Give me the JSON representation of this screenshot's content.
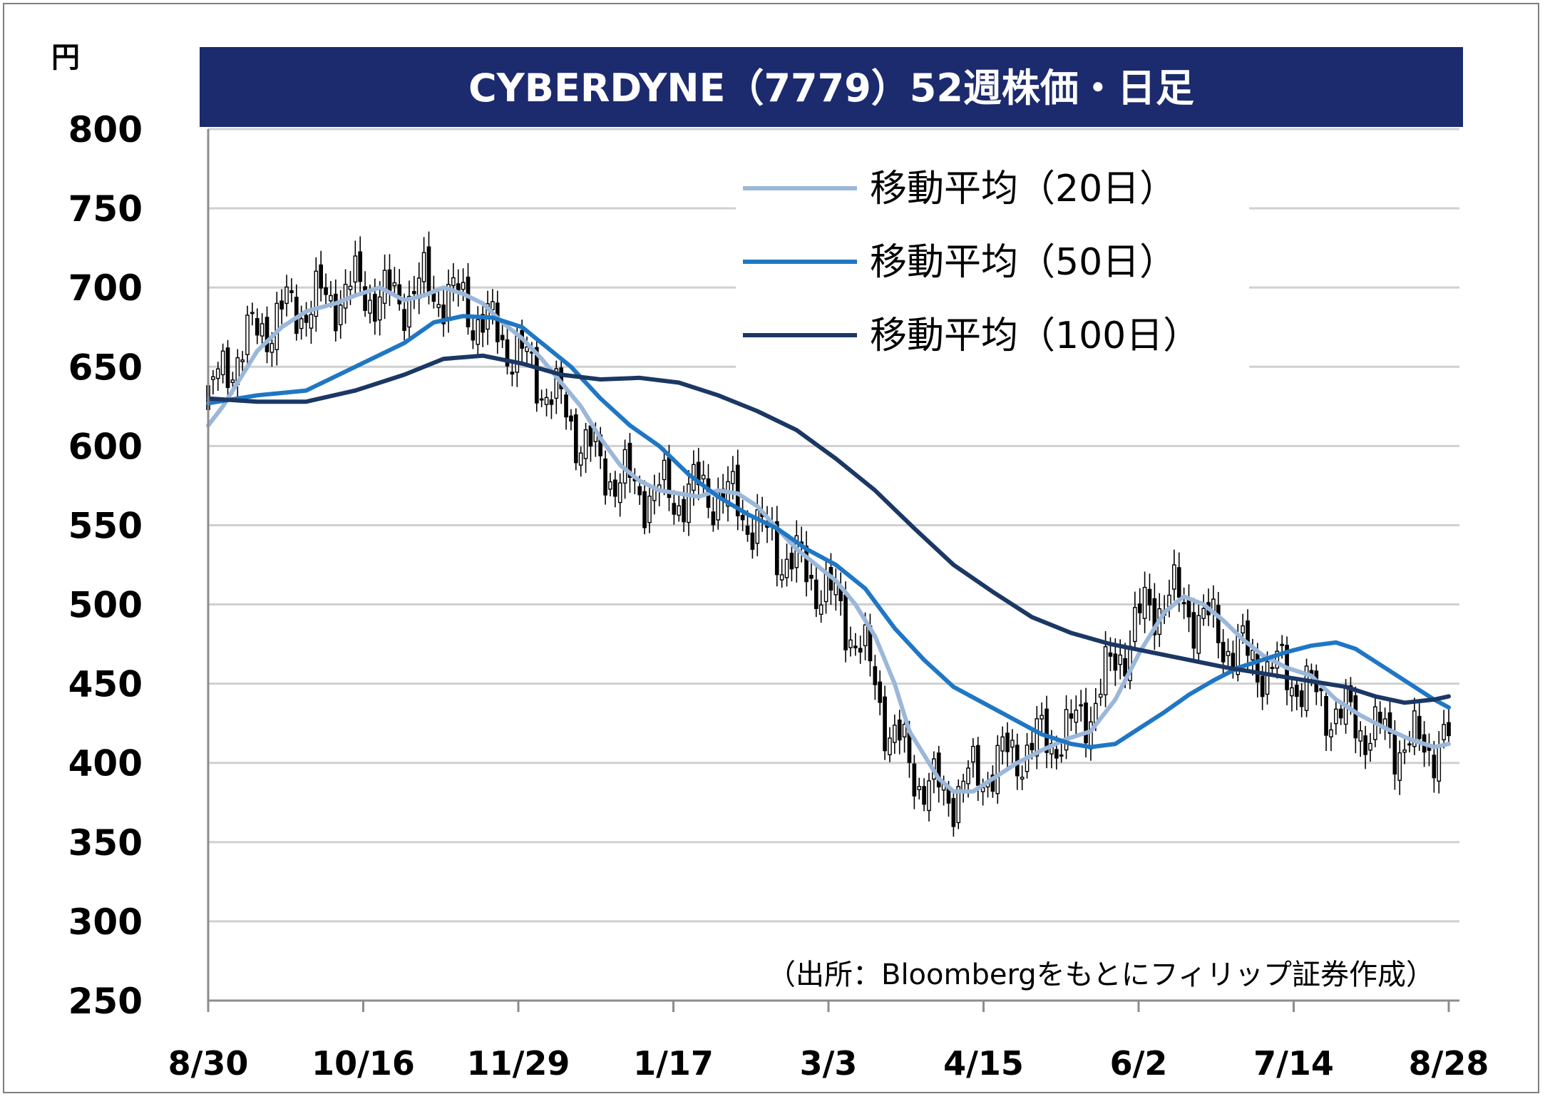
{
  "chart_data": {
    "type": "candlestick",
    "title": "CYBERDYNE（7779）52週株価・日足",
    "y_unit": "円",
    "ylim": [
      250,
      800
    ],
    "y_ticks": [
      250,
      300,
      350,
      400,
      450,
      500,
      550,
      600,
      650,
      700,
      750,
      800
    ],
    "x_tick_labels": [
      "8/30",
      "10/16",
      "11/29",
      "1/17",
      "3/3",
      "4/15",
      "6/2",
      "7/14",
      "8/28"
    ],
    "grid": true,
    "legend_position": "top-right",
    "source": "（出所：Bloombergをもとにフィリップ証券作成）",
    "colors": {
      "title_band": "#1c2a6e",
      "ma20": "#9bb7d9",
      "ma50": "#1f77c4",
      "ma100": "#1b3764",
      "grid": "#d0d0d0",
      "candle": "#000000"
    },
    "series": [
      {
        "name": "移動平均（20日）",
        "color": "#9bb7d9",
        "points": [
          [
            0,
            613
          ],
          [
            3,
            625
          ],
          [
            6,
            640
          ],
          [
            10,
            660
          ],
          [
            15,
            675
          ],
          [
            20,
            685
          ],
          [
            26,
            690
          ],
          [
            30,
            695
          ],
          [
            35,
            700
          ],
          [
            40,
            692
          ],
          [
            44,
            695
          ],
          [
            48,
            700
          ],
          [
            52,
            696
          ],
          [
            56,
            690
          ],
          [
            60,
            678
          ],
          [
            64,
            668
          ],
          [
            68,
            655
          ],
          [
            72,
            640
          ],
          [
            76,
            625
          ],
          [
            80,
            605
          ],
          [
            84,
            588
          ],
          [
            88,
            578
          ],
          [
            92,
            572
          ],
          [
            96,
            570
          ],
          [
            100,
            568
          ],
          [
            104,
            572
          ],
          [
            108,
            570
          ],
          [
            112,
            562
          ],
          [
            116,
            548
          ],
          [
            120,
            535
          ],
          [
            124,
            525
          ],
          [
            128,
            515
          ],
          [
            132,
            500
          ],
          [
            136,
            480
          ],
          [
            140,
            450
          ],
          [
            143,
            420
          ],
          [
            146,
            405
          ],
          [
            149,
            390
          ],
          [
            152,
            382
          ],
          [
            156,
            382
          ],
          [
            160,
            390
          ],
          [
            165,
            400
          ],
          [
            170,
            408
          ],
          [
            175,
            415
          ],
          [
            180,
            420
          ],
          [
            185,
            440
          ],
          [
            190,
            470
          ],
          [
            195,
            495
          ],
          [
            199,
            505
          ],
          [
            203,
            500
          ],
          [
            207,
            490
          ],
          [
            211,
            478
          ],
          [
            215,
            468
          ],
          [
            220,
            460
          ],
          [
            225,
            455
          ],
          [
            230,
            440
          ],
          [
            235,
            430
          ],
          [
            240,
            422
          ],
          [
            245,
            415
          ],
          [
            250,
            410
          ],
          [
            253,
            412
          ]
        ]
      },
      {
        "name": "移動平均（50日）",
        "color": "#1f77c4",
        "points": [
          [
            0,
            627
          ],
          [
            10,
            632
          ],
          [
            20,
            635
          ],
          [
            30,
            650
          ],
          [
            40,
            665
          ],
          [
            46,
            678
          ],
          [
            52,
            682
          ],
          [
            58,
            681
          ],
          [
            64,
            675
          ],
          [
            68,
            665
          ],
          [
            74,
            650
          ],
          [
            80,
            630
          ],
          [
            86,
            613
          ],
          [
            92,
            600
          ],
          [
            98,
            582
          ],
          [
            104,
            568
          ],
          [
            110,
            557
          ],
          [
            116,
            548
          ],
          [
            122,
            535
          ],
          [
            128,
            525
          ],
          [
            134,
            510
          ],
          [
            140,
            485
          ],
          [
            146,
            465
          ],
          [
            152,
            448
          ],
          [
            158,
            438
          ],
          [
            164,
            428
          ],
          [
            170,
            418
          ],
          [
            176,
            412
          ],
          [
            180,
            410
          ],
          [
            185,
            412
          ],
          [
            190,
            422
          ],
          [
            195,
            432
          ],
          [
            200,
            443
          ],
          [
            205,
            452
          ],
          [
            210,
            460
          ],
          [
            215,
            465
          ],
          [
            220,
            470
          ],
          [
            225,
            474
          ],
          [
            230,
            476
          ],
          [
            234,
            472
          ],
          [
            240,
            460
          ],
          [
            245,
            450
          ],
          [
            250,
            440
          ],
          [
            253,
            435
          ]
        ]
      },
      {
        "name": "移動平均（100日）",
        "color": "#1b3764",
        "points": [
          [
            0,
            630
          ],
          [
            10,
            628
          ],
          [
            20,
            628
          ],
          [
            30,
            635
          ],
          [
            40,
            645
          ],
          [
            48,
            655
          ],
          [
            56,
            657
          ],
          [
            64,
            652
          ],
          [
            72,
            645
          ],
          [
            80,
            642
          ],
          [
            88,
            643
          ],
          [
            96,
            640
          ],
          [
            104,
            632
          ],
          [
            112,
            622
          ],
          [
            120,
            610
          ],
          [
            128,
            592
          ],
          [
            136,
            572
          ],
          [
            144,
            548
          ],
          [
            152,
            525
          ],
          [
            160,
            508
          ],
          [
            168,
            492
          ],
          [
            176,
            482
          ],
          [
            184,
            475
          ],
          [
            192,
            470
          ],
          [
            200,
            465
          ],
          [
            208,
            460
          ],
          [
            216,
            456
          ],
          [
            224,
            452
          ],
          [
            232,
            448
          ],
          [
            238,
            442
          ],
          [
            244,
            438
          ],
          [
            250,
            440
          ],
          [
            253,
            442
          ]
        ]
      }
    ]
  }
}
